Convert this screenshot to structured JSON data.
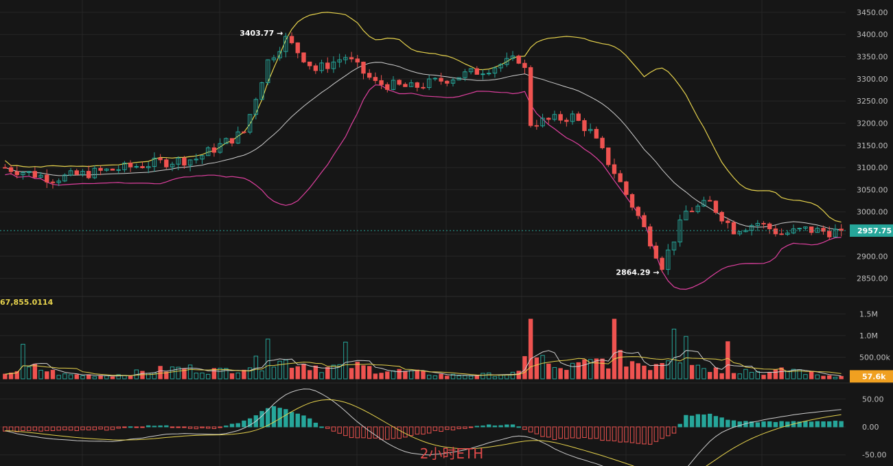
{
  "chart_data": {
    "type": "candlestick",
    "symbol_label": "2小时ETH",
    "colors": {
      "up": "#26a69a",
      "down": "#ef5350",
      "bb_upper": "#e8d44d",
      "bb_middle": "#d0d0d0",
      "bb_lower": "#e040a0",
      "macd_dif": "#d0d0d0",
      "macd_dea": "#e8d44d",
      "price_badge": "#26a69a",
      "volume_badge": "#f0a020",
      "background": "#161616",
      "grid": "#262626"
    },
    "price_axis": {
      "ylim": [
        2820,
        3470
      ],
      "ticks": [
        "3450.00",
        "3400.00",
        "3350.00",
        "3300.00",
        "3250.00",
        "3200.00",
        "3150.00",
        "3100.00",
        "3050.00",
        "3000.00",
        "2950.00",
        "2900.00",
        "2850.00"
      ],
      "tick_values": [
        3450,
        3400,
        3350,
        3300,
        3250,
        3200,
        3150,
        3100,
        3050,
        3000,
        2950,
        2900,
        2850
      ]
    },
    "current_price": {
      "label": "2957.75",
      "value": 2957.75
    },
    "annotations": [
      {
        "text": "3403.77 →",
        "value": 3403.77,
        "bar": 47
      },
      {
        "text": "2864.29 →",
        "value": 2864.29,
        "bar": 110
      }
    ],
    "volume_axis": {
      "ylim": [
        0,
        1650000
      ],
      "ticks": [
        "1.5M",
        "1.0M",
        "500.00k"
      ],
      "tick_values": [
        1500000,
        1000000,
        500000
      ],
      "header_value": "67,855.0114",
      "current_label": "57.6k",
      "current_value": 57600
    },
    "macd_axis": {
      "ylim": [
        -70,
        70
      ],
      "ticks": [
        "50.00",
        "0.00",
        "-50.00"
      ],
      "tick_values": [
        50,
        0,
        -50
      ]
    },
    "price_keypoints": [
      [
        0,
        3100
      ],
      [
        8,
        3075
      ],
      [
        18,
        3095
      ],
      [
        25,
        3110
      ],
      [
        32,
        3120
      ],
      [
        40,
        3180
      ],
      [
        44,
        3340
      ],
      [
        47,
        3390
      ],
      [
        52,
        3320
      ],
      [
        57,
        3350
      ],
      [
        62,
        3290
      ],
      [
        68,
        3280
      ],
      [
        74,
        3300
      ],
      [
        80,
        3320
      ],
      [
        86,
        3345
      ],
      [
        87,
        3320
      ],
      [
        88,
        3200
      ],
      [
        95,
        3215
      ],
      [
        98,
        3180
      ],
      [
        102,
        3090
      ],
      [
        106,
        2990
      ],
      [
        110,
        2880
      ],
      [
        114,
        3000
      ],
      [
        118,
        3020
      ],
      [
        122,
        2960
      ],
      [
        126,
        2975
      ],
      [
        130,
        2950
      ],
      [
        134,
        2960
      ],
      [
        138,
        2955
      ],
      [
        140,
        2957.75
      ]
    ],
    "volume_keypoints": [
      [
        0,
        150000
      ],
      [
        5,
        250000
      ],
      [
        10,
        90000
      ],
      [
        18,
        80000
      ],
      [
        26,
        200000
      ],
      [
        30,
        250000
      ],
      [
        36,
        180000
      ],
      [
        42,
        350000
      ],
      [
        48,
        400000
      ],
      [
        54,
        250000
      ],
      [
        58,
        300000
      ],
      [
        62,
        220000
      ],
      [
        68,
        150000
      ],
      [
        74,
        80000
      ],
      [
        80,
        90000
      ],
      [
        86,
        120000
      ],
      [
        88,
        700000
      ],
      [
        92,
        200000
      ],
      [
        96,
        300000
      ],
      [
        100,
        420000
      ],
      [
        104,
        450000
      ],
      [
        108,
        300000
      ],
      [
        112,
        650000
      ],
      [
        116,
        320000
      ],
      [
        120,
        180000
      ],
      [
        124,
        200000
      ],
      [
        128,
        130000
      ],
      [
        132,
        220000
      ],
      [
        136,
        90000
      ],
      [
        140,
        57600
      ]
    ],
    "volume_spikes": [
      {
        "bar": 88,
        "value": 1380000
      },
      {
        "bar": 102,
        "value": 1380000
      },
      {
        "bar": 112,
        "value": 1150000
      },
      {
        "bar": 114,
        "value": 980000
      },
      {
        "bar": 121,
        "value": 860000
      },
      {
        "bar": 44,
        "value": 920000
      },
      {
        "bar": 57,
        "value": 850000
      },
      {
        "bar": 3,
        "value": 800000
      }
    ],
    "macd_keypoints": [
      [
        0,
        -8
      ],
      [
        15,
        -6
      ],
      [
        25,
        2
      ],
      [
        35,
        -4
      ],
      [
        40,
        10
      ],
      [
        45,
        38
      ],
      [
        50,
        20
      ],
      [
        53,
        0
      ],
      [
        58,
        -18
      ],
      [
        65,
        -22
      ],
      [
        72,
        -8
      ],
      [
        80,
        2
      ],
      [
        85,
        4
      ],
      [
        88,
        -10
      ],
      [
        92,
        -22
      ],
      [
        98,
        -20
      ],
      [
        104,
        -28
      ],
      [
        108,
        -30
      ],
      [
        112,
        -12
      ],
      [
        114,
        20
      ],
      [
        118,
        22
      ],
      [
        122,
        10
      ],
      [
        128,
        8
      ],
      [
        134,
        10
      ],
      [
        140,
        9
      ]
    ]
  }
}
